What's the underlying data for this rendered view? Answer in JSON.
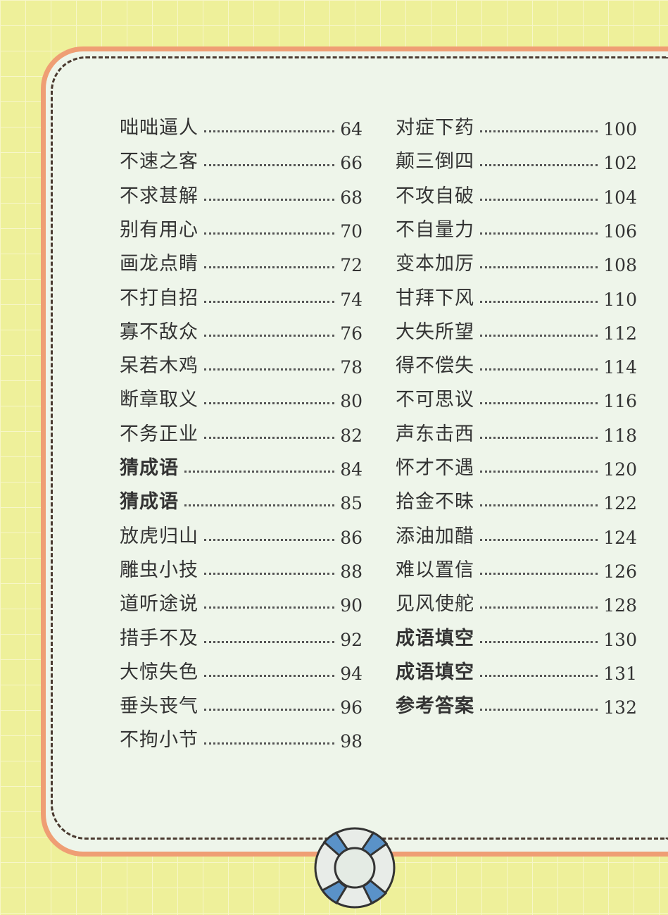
{
  "toc": {
    "left": [
      {
        "title": "咄咄逼人",
        "page": "64"
      },
      {
        "title": "不速之客",
        "page": "66"
      },
      {
        "title": "不求甚解",
        "page": "68"
      },
      {
        "title": "别有用心",
        "page": "70"
      },
      {
        "title": "画龙点睛",
        "page": "72"
      },
      {
        "title": "不打自招",
        "page": "74"
      },
      {
        "title": "寡不敌众",
        "page": "76"
      },
      {
        "title": "呆若木鸡",
        "page": "78"
      },
      {
        "title": "断章取义",
        "page": "80"
      },
      {
        "title": "不务正业",
        "page": "82"
      },
      {
        "title": "猜成语",
        "page": "84",
        "bold": true
      },
      {
        "title": "猜成语",
        "page": "85",
        "bold": true
      },
      {
        "title": "放虎归山",
        "page": "86"
      },
      {
        "title": "雕虫小技",
        "page": "88"
      },
      {
        "title": "道听途说",
        "page": "90"
      },
      {
        "title": "措手不及",
        "page": "92"
      },
      {
        "title": "大惊失色",
        "page": "94"
      },
      {
        "title": "垂头丧气",
        "page": "96"
      },
      {
        "title": "不拘小节",
        "page": "98"
      }
    ],
    "right": [
      {
        "title": "对症下药",
        "page": "100"
      },
      {
        "title": "颠三倒四",
        "page": "102"
      },
      {
        "title": "不攻自破",
        "page": "104"
      },
      {
        "title": "不自量力",
        "page": "106"
      },
      {
        "title": "变本加厉",
        "page": "108"
      },
      {
        "title": "甘拜下风",
        "page": "110"
      },
      {
        "title": "大失所望",
        "page": "112"
      },
      {
        "title": "得不偿失",
        "page": "114"
      },
      {
        "title": "不可思议",
        "page": "116"
      },
      {
        "title": "声东击西",
        "page": "118"
      },
      {
        "title": "怀才不遇",
        "page": "120"
      },
      {
        "title": "拾金不昧",
        "page": "122"
      },
      {
        "title": "添油加醋",
        "page": "124"
      },
      {
        "title": "难以置信",
        "page": "126"
      },
      {
        "title": "见风使舵",
        "page": "128"
      },
      {
        "title": "成语填空",
        "page": "130",
        "bold": true
      },
      {
        "title": "成语填空",
        "page": "131",
        "bold": true
      },
      {
        "title": "参考答案",
        "page": "132",
        "bold": true
      }
    ]
  },
  "colors": {
    "background": "#eef09a",
    "frame": "#ef9e74",
    "panel": "#eef5ea",
    "buoy_blue": "#5a92c8"
  },
  "decoration": {
    "icon": "life-buoy-icon"
  }
}
